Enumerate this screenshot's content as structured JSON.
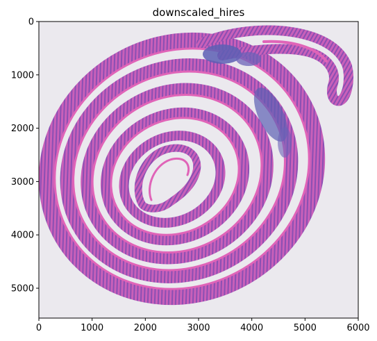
{
  "figure": {
    "title": "downscaled_hires",
    "x_ticks": [
      {
        "value": 0,
        "label": "0"
      },
      {
        "value": 1000,
        "label": "1000"
      },
      {
        "value": 2000,
        "label": "2000"
      },
      {
        "value": 3000,
        "label": "3000"
      },
      {
        "value": 4000,
        "label": "4000"
      },
      {
        "value": 5000,
        "label": "5000"
      },
      {
        "value": 6000,
        "label": "6000"
      }
    ],
    "y_ticks": [
      {
        "value": 0,
        "label": "0"
      },
      {
        "value": 1000,
        "label": "1000"
      },
      {
        "value": 2000,
        "label": "2000"
      },
      {
        "value": 3000,
        "label": "3000"
      },
      {
        "value": 4000,
        "label": "4000"
      },
      {
        "value": 5000,
        "label": "5000"
      }
    ],
    "x_range": [
      0,
      6000
    ],
    "y_range": [
      5560,
      0
    ],
    "colors": {
      "slide_background": "#ebe9ee",
      "tissue_pink": "#d85ab6",
      "tissue_purple": "#8f54b8",
      "lymphoid_blue": "#5d5fb4",
      "lumen": "#f3eff6"
    }
  }
}
